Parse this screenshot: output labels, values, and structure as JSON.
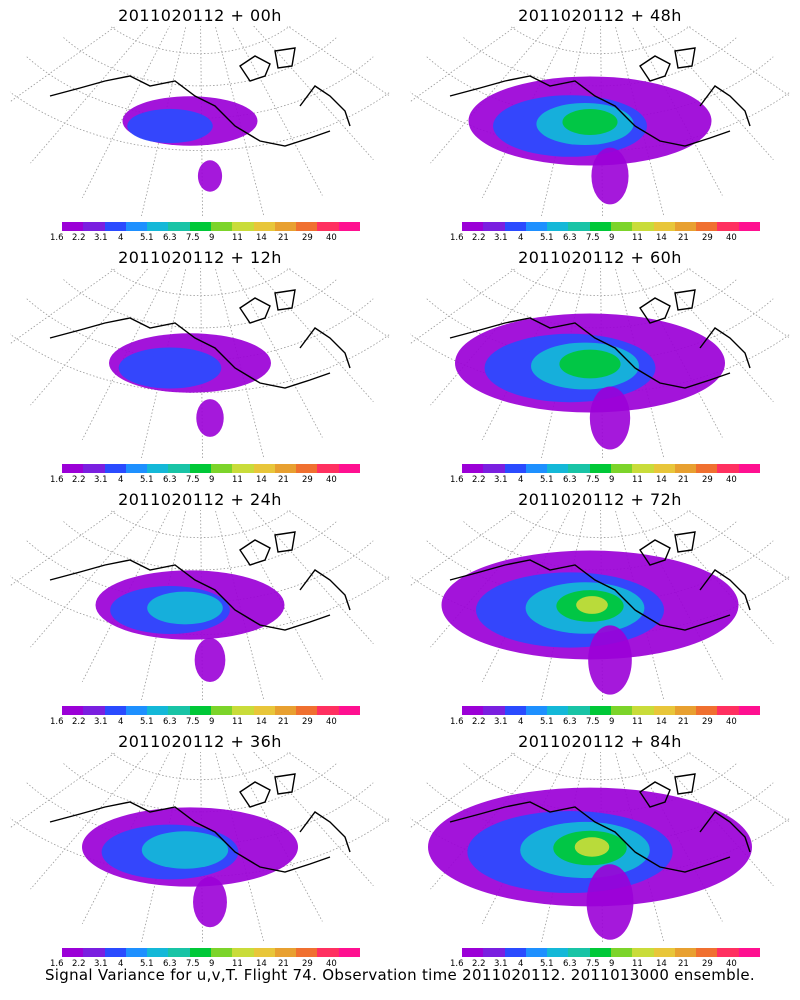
{
  "panels": [
    {
      "title": "2011020112 + 00h",
      "level": 0
    },
    {
      "title": "2011020112 + 48h",
      "level": 4
    },
    {
      "title": "2011020112 + 12h",
      "level": 1
    },
    {
      "title": "2011020112 + 60h",
      "level": 5
    },
    {
      "title": "2011020112 + 24h",
      "level": 2
    },
    {
      "title": "2011020112 + 72h",
      "level": 6
    },
    {
      "title": "2011020112 + 36h",
      "level": 3
    },
    {
      "title": "2011020112 + 84h",
      "level": 7
    }
  ],
  "colorbar": {
    "labels": [
      "1.6",
      "2.2",
      "3.1",
      "4",
      "5.1",
      "6.3",
      "7.5",
      "9",
      "11",
      "14",
      "21",
      "29",
      "40"
    ],
    "colors": [
      "#9b00d7",
      "#7a1fe0",
      "#2a4bff",
      "#1e90ff",
      "#14b8d8",
      "#19c4a6",
      "#00c838",
      "#7cd42a",
      "#c9dc3a",
      "#e8c63a",
      "#e8a030",
      "#f07030",
      "#ff3060",
      "#ff1090"
    ]
  },
  "map_colors": {
    "land": "#000000",
    "grid": "#999999",
    "base": "#9b00d7"
  },
  "caption": "Signal Variance for u,v,T. Flight 74. Observation time 2011020112. 2011013000 ensemble."
}
